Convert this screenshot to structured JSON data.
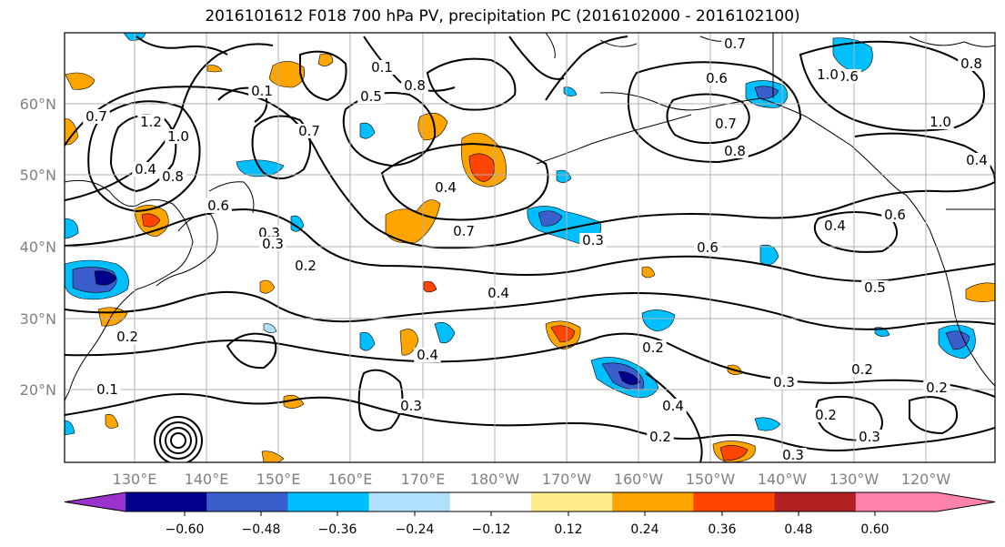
{
  "title": "2016101612 F018 700 hPa PV, precipitation PC (2016102000 - 2016102100)",
  "map": {
    "lon_ticks": [
      "130°E",
      "140°E",
      "150°E",
      "160°E",
      "170°E",
      "180°W",
      "170°W",
      "160°W",
      "150°W",
      "140°W",
      "130°W",
      "120°W"
    ],
    "lat_ticks": [
      "60°N",
      "50°N",
      "40°N",
      "30°N",
      "20°N"
    ],
    "grid": true
  },
  "colorbar": {
    "ticks": [
      "−0.60",
      "−0.48",
      "−0.36",
      "−0.24",
      "−0.12",
      "0.12",
      "0.24",
      "0.36",
      "0.48",
      "0.60"
    ],
    "colors": [
      "#9a32cd",
      "#00008b",
      "#3a5fcd",
      "#00bfff",
      "#b0e2ff",
      "#ffffff",
      "#ffec8b",
      "#ffa500",
      "#ff4500",
      "#b22222",
      "#ff82ab"
    ],
    "extend": "both"
  },
  "contour_labels": [
    "0.1",
    "1.2",
    "1.0",
    "0.7",
    "0.8",
    "0.6",
    "0.4",
    "0.3",
    "0.2",
    "0.7",
    "0.1",
    "0.8",
    "0.5",
    "0.4",
    "0.7",
    "0.3",
    "0.6",
    "0.8",
    "0.4",
    "0.6",
    "0.5",
    "0.4",
    "0.2",
    "0.4",
    "0.3",
    "0.2",
    "0.4",
    "0.3",
    "0.2",
    "0.3",
    "0.2",
    "0.7",
    "1.0",
    "0.8",
    "0.7",
    "0.6",
    "1.0",
    "0.6",
    "0.4",
    "0.2",
    "0.3",
    "0.2",
    "0.3",
    "0.2",
    "0.1"
  ],
  "colors": {
    "contour": "#000000",
    "grid": "#b0b0b0",
    "coast": "#000000"
  }
}
